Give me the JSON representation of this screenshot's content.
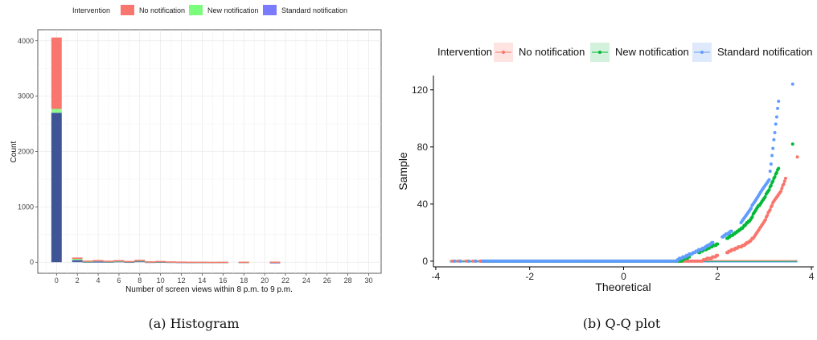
{
  "chart_data": [
    {
      "type": "bar",
      "stacked": true,
      "caption": "(a) Histogram",
      "xlabel": "Number of screen views within 8 p.m. to 9 p.m.",
      "ylabel": "Count",
      "xlim": [
        -1.8,
        31.2
      ],
      "ylim": [
        -200,
        4200
      ],
      "x_ticks": [
        0,
        2,
        4,
        6,
        8,
        10,
        12,
        14,
        16,
        18,
        20,
        22,
        24,
        26,
        28,
        30
      ],
      "y_ticks": [
        0,
        1000,
        2000,
        3000,
        4000
      ],
      "grid": true,
      "legend": {
        "title": "Intervention",
        "position": "top"
      },
      "series": [
        {
          "name": "No notification",
          "color": "#F8766D"
        },
        {
          "name": "New notification",
          "color": "#7CFC7C"
        },
        {
          "name": "Standard notification",
          "color": "#7B7BFF"
        }
      ],
      "bars": [
        {
          "x": 0,
          "std": 2700,
          "new": 70,
          "no": 1290
        },
        {
          "x": 2,
          "std": 40,
          "new": 20,
          "no": 25
        },
        {
          "x": 3,
          "std": 12,
          "new": 8,
          "no": 10
        },
        {
          "x": 4,
          "std": 15,
          "new": 20,
          "no": 5
        },
        {
          "x": 5,
          "std": 12,
          "new": 8,
          "no": 8
        },
        {
          "x": 6,
          "std": 20,
          "new": 10,
          "no": 8
        },
        {
          "x": 7,
          "std": 10,
          "new": 8,
          "no": 5
        },
        {
          "x": 8,
          "std": 25,
          "new": 10,
          "no": 10
        },
        {
          "x": 9,
          "std": 8,
          "new": 5,
          "no": 4
        },
        {
          "x": 10,
          "std": 10,
          "new": 8,
          "no": 5
        },
        {
          "x": 11,
          "std": 8,
          "new": 4,
          "no": 3
        },
        {
          "x": 12,
          "std": 6,
          "new": 4,
          "no": 2
        },
        {
          "x": 13,
          "std": 4,
          "new": 3,
          "no": 2
        },
        {
          "x": 14,
          "std": 5,
          "new": 2,
          "no": 2
        },
        {
          "x": 15,
          "std": 4,
          "new": 2,
          "no": 1
        },
        {
          "x": 16,
          "std": 5,
          "new": 2,
          "no": 1
        },
        {
          "x": 18,
          "std": 6,
          "new": 2,
          "no": 1
        },
        {
          "x": 21,
          "std": 2,
          "new": 8,
          "no": 1
        }
      ]
    },
    {
      "type": "scatter",
      "caption": "(b) Q-Q plot",
      "xlabel": "Theoretical",
      "ylabel": "Sample",
      "xlim": [
        -4.05,
        4.05
      ],
      "ylim": [
        -4,
        130
      ],
      "x_ticks": [
        -4,
        -2,
        0,
        2,
        4
      ],
      "y_ticks": [
        0,
        40,
        80,
        120
      ],
      "grid": false,
      "legend": {
        "title": "Intervention",
        "position": "top"
      },
      "series": [
        {
          "name": "No notification",
          "color": "#F8766D",
          "zero_from": -3.65,
          "zero_to": 1.7,
          "tail": [
            [
              1.7,
              1
            ],
            [
              1.85,
              2
            ],
            [
              2.0,
              4
            ],
            [
              2.2,
              6
            ],
            [
              2.4,
              9
            ],
            [
              2.55,
              11
            ],
            [
              2.7,
              14
            ],
            [
              2.8,
              18
            ],
            [
              2.9,
              23
            ],
            [
              3.0,
              28
            ],
            [
              3.1,
              35
            ],
            [
              3.2,
              42
            ],
            [
              3.35,
              49
            ],
            [
              3.45,
              58
            ],
            [
              3.7,
              73
            ]
          ],
          "reference": [
            [
              -3.7,
              0.4
            ],
            [
              3.7,
              0.4
            ]
          ]
        },
        {
          "name": "New notification",
          "color": "#00BA38",
          "zero_from": -3.6,
          "zero_to": 1.25,
          "tail": [
            [
              1.25,
              1
            ],
            [
              1.4,
              3
            ],
            [
              1.6,
              6
            ],
            [
              1.8,
              9
            ],
            [
              2.0,
              12
            ],
            [
              2.2,
              16
            ],
            [
              2.4,
              20
            ],
            [
              2.55,
              24
            ],
            [
              2.7,
              29
            ],
            [
              2.8,
              35
            ],
            [
              2.95,
              42
            ],
            [
              3.1,
              50
            ],
            [
              3.3,
              65
            ],
            [
              3.6,
              82
            ]
          ],
          "reference": [
            [
              -3.7,
              -0.2
            ],
            [
              3.7,
              -0.2
            ]
          ]
        },
        {
          "name": "Standard notification",
          "color": "#619CFF",
          "zero_from": -3.6,
          "zero_to": 1.15,
          "tail": [
            [
              1.15,
              1
            ],
            [
              1.3,
              3
            ],
            [
              1.5,
              6
            ],
            [
              1.7,
              9
            ],
            [
              1.9,
              13
            ],
            [
              2.1,
              17
            ],
            [
              2.3,
              21
            ],
            [
              2.5,
              27
            ],
            [
              2.65,
              34
            ],
            [
              2.8,
              42
            ],
            [
              2.95,
              50
            ],
            [
              3.1,
              57
            ],
            [
              3.3,
              112
            ],
            [
              3.6,
              124
            ]
          ],
          "reference": [
            [
              -3.7,
              -0.6
            ],
            [
              3.7,
              -0.6
            ]
          ]
        }
      ]
    }
  ]
}
